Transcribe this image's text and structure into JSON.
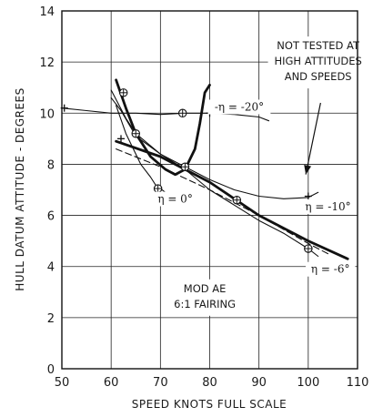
{
  "chart_data": {
    "type": "line",
    "title": "",
    "xlabel": "SPEED KNOTS FULL SCALE",
    "ylabel": "HULL DATUM   ATTITUDE - DEGREES",
    "xlim": [
      50,
      110
    ],
    "ylim": [
      0,
      14
    ],
    "xticks": [
      50,
      60,
      70,
      80,
      90,
      100,
      110
    ],
    "xtick_labels": [
      "50",
      "60",
      "70",
      "80",
      "90",
      "100",
      "110"
    ],
    "yticks": [
      0,
      2,
      4,
      6,
      8,
      10,
      12,
      14
    ],
    "ytick_labels": [
      "0",
      "2",
      "4",
      "6",
      "8",
      "10",
      "12",
      "14"
    ],
    "grid": true,
    "series": [
      {
        "name": "η = -20°",
        "style": "thin",
        "points": [
          [
            50,
            10.2
          ],
          [
            55,
            10.1
          ],
          [
            60,
            10.0
          ],
          [
            65,
            10.0
          ],
          [
            70,
            9.95
          ],
          [
            75,
            10.0
          ],
          [
            80,
            10.0
          ],
          [
            85,
            9.95
          ],
          [
            90,
            9.85
          ],
          [
            92,
            9.7
          ]
        ]
      },
      {
        "name": "η = -10°",
        "style": "thin",
        "points": [
          [
            60,
            10.6
          ],
          [
            62,
            10.1
          ],
          [
            65,
            9.1
          ],
          [
            70,
            8.4
          ],
          [
            75,
            7.9
          ],
          [
            80,
            7.4
          ],
          [
            85,
            7.0
          ],
          [
            90,
            6.75
          ],
          [
            95,
            6.65
          ],
          [
            100,
            6.7
          ],
          [
            102,
            6.9
          ]
        ]
      },
      {
        "name": "η = -6°",
        "style": "thin",
        "points": [
          [
            60,
            10.9
          ],
          [
            63,
            9.8
          ],
          [
            65,
            9.2
          ],
          [
            70,
            8.4
          ],
          [
            75,
            7.8
          ],
          [
            80,
            7.0
          ],
          [
            85,
            6.4
          ],
          [
            90,
            5.8
          ],
          [
            95,
            5.3
          ],
          [
            100,
            4.7
          ],
          [
            102,
            4.4
          ]
        ]
      },
      {
        "name": "η = 0°",
        "style": "thin",
        "points": [
          [
            61,
            10.3
          ],
          [
            63,
            9.2
          ],
          [
            66,
            8.0
          ],
          [
            68,
            7.5
          ],
          [
            69,
            7.2
          ],
          [
            71,
            6.9
          ]
        ]
      },
      {
        "name": "",
        "style": "heavy",
        "points": [
          [
            61,
            11.3
          ],
          [
            63,
            10.2
          ],
          [
            65,
            9.2
          ],
          [
            68,
            8.3
          ],
          [
            71,
            7.8
          ],
          [
            73,
            7.6
          ],
          [
            75,
            7.8
          ],
          [
            77,
            8.6
          ],
          [
            78,
            9.6
          ],
          [
            79,
            10.8
          ],
          [
            80,
            11.1
          ]
        ]
      },
      {
        "name": "",
        "style": "heavy",
        "points": [
          [
            61,
            8.9
          ],
          [
            70,
            8.3
          ],
          [
            80,
            7.3
          ],
          [
            90,
            6.0
          ],
          [
            100,
            5.0
          ],
          [
            108,
            4.3
          ]
        ]
      },
      {
        "name": "",
        "style": "dashed",
        "points": [
          [
            61,
            8.6
          ],
          [
            70,
            7.9
          ],
          [
            80,
            7.0
          ],
          [
            90,
            6.0
          ],
          [
            100,
            4.9
          ],
          [
            104,
            4.5
          ]
        ]
      }
    ],
    "markers": [
      {
        "symbol": "⊕",
        "x": 62.5,
        "y": 10.8
      },
      {
        "symbol": "⊕",
        "x": 65.0,
        "y": 9.2
      },
      {
        "symbol": "⊕",
        "x": 69.5,
        "y": 7.05
      },
      {
        "symbol": "⊕",
        "x": 74.5,
        "y": 10.0
      },
      {
        "symbol": "⊕",
        "x": 75.0,
        "y": 7.9
      },
      {
        "symbol": "⊕",
        "x": 85.5,
        "y": 6.6
      },
      {
        "symbol": "⊕",
        "x": 100.0,
        "y": 4.7
      },
      {
        "symbol": "+",
        "x": 50.5,
        "y": 10.2
      },
      {
        "symbol": "+",
        "x": 62.0,
        "y": 9.0
      },
      {
        "symbol": "+",
        "x": 80.0,
        "y": 10.0
      },
      {
        "symbol": "+",
        "x": 100.0,
        "y": 6.75
      }
    ],
    "curve_labels": [
      {
        "text": "-η = -20°",
        "x": 86.0,
        "y": 10.1
      },
      {
        "text": "η = -10°",
        "x": 104.0,
        "y": 6.2
      },
      {
        "text": "η = -6°",
        "x": 104.5,
        "y": 3.75
      },
      {
        "text": "η = 0°",
        "x": 73.0,
        "y": 6.5
      }
    ],
    "annotations": [
      {
        "lines": [
          "NOT TESTED AT",
          "HIGH ATTITUDES",
          "AND SPEEDS"
        ],
        "x": 102.0,
        "y": 12.5
      },
      {
        "lines": [
          "MOD AE",
          "6:1 FAIRING"
        ],
        "x": 79.0,
        "y": 3.0
      }
    ],
    "arrow": {
      "from": [
        102.5,
        10.4
      ],
      "to": [
        99.5,
        7.6
      ]
    }
  }
}
